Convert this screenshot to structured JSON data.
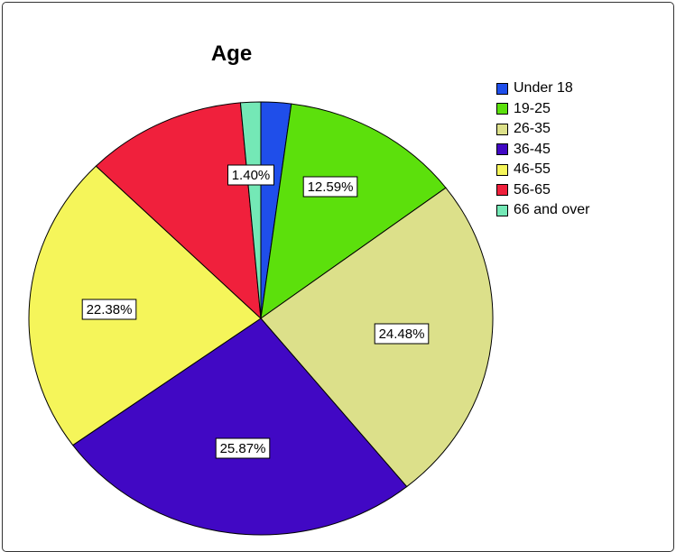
{
  "chart_data": {
    "type": "pie",
    "title": "Age",
    "legend_position": "right",
    "slices": [
      {
        "label": "Under 18",
        "value": 2.1,
        "display": "",
        "color": "#1f4eea"
      },
      {
        "label": "19-25",
        "value": 12.59,
        "display": "12.59%",
        "color": "#5ce00c"
      },
      {
        "label": "26-35",
        "value": 24.48,
        "display": "24.48%",
        "color": "#dce08a"
      },
      {
        "label": "36-45",
        "value": 25.87,
        "display": "25.87%",
        "color": "#4108c4"
      },
      {
        "label": "46-55",
        "value": 22.38,
        "display": "22.38%",
        "color": "#f5f55a"
      },
      {
        "label": "56-65",
        "value": 11.18,
        "display": "",
        "color": "#f0203c"
      },
      {
        "label": "66 and over",
        "value": 1.4,
        "display": "1.40%",
        "color": "#74e8b6"
      }
    ]
  }
}
